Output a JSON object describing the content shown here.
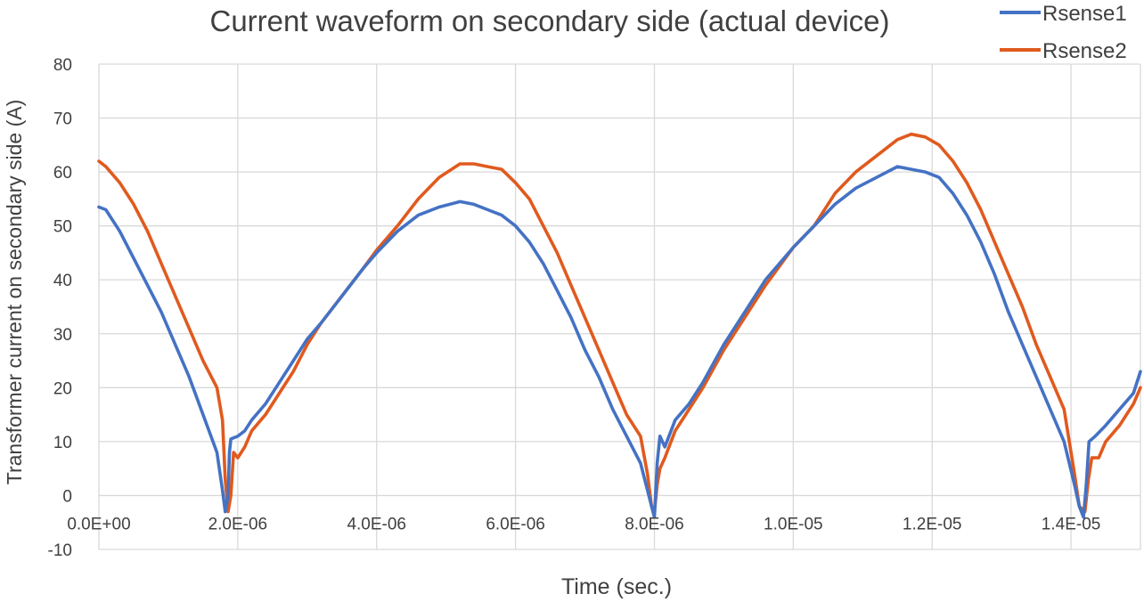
{
  "chart_data": {
    "type": "line",
    "title": "Current waveform on secondary side (actual device)",
    "xlabel": "Time (sec.)",
    "ylabel": "Transformer current on secondary side (A)",
    "xlim": [
      0,
      1.5e-05
    ],
    "ylim": [
      -10,
      80
    ],
    "x_ticks": [
      0,
      2e-06,
      4e-06,
      6e-06,
      8e-06,
      1e-05,
      1.2e-05,
      1.4e-05
    ],
    "x_tick_labels": [
      "0.0E+00",
      "2.0E-06",
      "4.0E-06",
      "6.0E-06",
      "8.0E-06",
      "1.0E-05",
      "1.2E-05",
      "1.4E-05"
    ],
    "y_ticks": [
      -10,
      0,
      10,
      20,
      30,
      40,
      50,
      60,
      70,
      80
    ],
    "y_tick_labels": [
      "-10",
      "0",
      "10",
      "20",
      "30",
      "40",
      "50",
      "60",
      "70",
      "80"
    ],
    "grid": true,
    "legend_position": "top-right",
    "series": [
      {
        "name": "Rsense1",
        "color": "#4472C4",
        "x": [
          0,
          1e-07,
          3e-07,
          5e-07,
          7e-07,
          9e-07,
          1.1e-06,
          1.3e-06,
          1.5e-06,
          1.7e-06,
          1.78e-06,
          1.82e-06,
          1.86e-06,
          1.88e-06,
          1.9e-06,
          2e-06,
          2.1e-06,
          2.2e-06,
          2.4e-06,
          2.6e-06,
          2.8e-06,
          3e-06,
          3.2e-06,
          3.5e-06,
          3.8e-06,
          4e-06,
          4.3e-06,
          4.6e-06,
          4.9e-06,
          5.2e-06,
          5.4e-06,
          5.6e-06,
          5.8e-06,
          6e-06,
          6.2e-06,
          6.4e-06,
          6.6e-06,
          6.8e-06,
          7e-06,
          7.2e-06,
          7.4e-06,
          7.6e-06,
          7.8e-06,
          7.9e-06,
          7.96e-06,
          8e-06,
          8.04e-06,
          8.08e-06,
          8.15e-06,
          8.3e-06,
          8.5e-06,
          8.7e-06,
          9e-06,
          9.3e-06,
          9.6e-06,
          1e-05,
          1.03e-05,
          1.06e-05,
          1.09e-05,
          1.12e-05,
          1.15e-05,
          1.17e-05,
          1.19e-05,
          1.21e-05,
          1.23e-05,
          1.25e-05,
          1.27e-05,
          1.29e-05,
          1.31e-05,
          1.33e-05,
          1.35e-05,
          1.37e-05,
          1.39e-05,
          1.405e-05,
          1.412e-05,
          1.418e-05,
          1.422e-05,
          1.426e-05,
          1.435e-05,
          1.45e-05,
          1.47e-05,
          1.49e-05,
          1.5e-05
        ],
        "y": [
          53.5,
          53,
          49,
          44,
          39,
          34,
          28,
          22,
          15,
          8,
          1,
          -3,
          0,
          8,
          10.5,
          11,
          12,
          14,
          17,
          21,
          25,
          29,
          32,
          37,
          42,
          45,
          49,
          52,
          53.5,
          54.5,
          54,
          53,
          52,
          50,
          47,
          43,
          38,
          33,
          27,
          22,
          16,
          11,
          6,
          1,
          -2,
          -4,
          6,
          11,
          9,
          14,
          17,
          21,
          28,
          34,
          40,
          46,
          50,
          54,
          57,
          59,
          61,
          60.5,
          60,
          59,
          56,
          52,
          47,
          41,
          34,
          28,
          22,
          16,
          10,
          2,
          -2,
          -4,
          2,
          10,
          11,
          13,
          16,
          19,
          23
        ]
      },
      {
        "name": "Rsense2",
        "color": "#E05A1E",
        "x": [
          0,
          1e-07,
          3e-07,
          5e-07,
          7e-07,
          9e-07,
          1.1e-06,
          1.3e-06,
          1.5e-06,
          1.7e-06,
          1.78e-06,
          1.82e-06,
          1.86e-06,
          1.9e-06,
          1.94e-06,
          2e-06,
          2.1e-06,
          2.2e-06,
          2.4e-06,
          2.6e-06,
          2.8e-06,
          3e-06,
          3.2e-06,
          3.5e-06,
          3.8e-06,
          4e-06,
          4.3e-06,
          4.6e-06,
          4.9e-06,
          5.2e-06,
          5.4e-06,
          5.6e-06,
          5.8e-06,
          6e-06,
          6.2e-06,
          6.4e-06,
          6.6e-06,
          6.8e-06,
          7e-06,
          7.2e-06,
          7.4e-06,
          7.6e-06,
          7.8e-06,
          7.9e-06,
          7.96e-06,
          8e-06,
          8.04e-06,
          8.08e-06,
          8.15e-06,
          8.3e-06,
          8.5e-06,
          8.7e-06,
          9e-06,
          9.3e-06,
          9.6e-06,
          1e-05,
          1.03e-05,
          1.06e-05,
          1.09e-05,
          1.12e-05,
          1.15e-05,
          1.17e-05,
          1.19e-05,
          1.21e-05,
          1.23e-05,
          1.25e-05,
          1.27e-05,
          1.29e-05,
          1.31e-05,
          1.33e-05,
          1.35e-05,
          1.37e-05,
          1.39e-05,
          1.405e-05,
          1.412e-05,
          1.42e-05,
          1.425e-05,
          1.43e-05,
          1.44e-05,
          1.45e-05,
          1.47e-05,
          1.49e-05,
          1.5e-05
        ],
        "y": [
          62,
          61,
          58,
          54,
          49,
          43,
          37,
          31,
          25,
          20,
          14,
          3,
          -3,
          0,
          8,
          7,
          9,
          12,
          15,
          19,
          23,
          28,
          32,
          37,
          42,
          45.5,
          50,
          55,
          59,
          61.5,
          61.5,
          61,
          60.5,
          58,
          55,
          50,
          45,
          39,
          33,
          27,
          21,
          15,
          11,
          4,
          -2,
          -3,
          2,
          5,
          7,
          12,
          16,
          20,
          27,
          33,
          39,
          46,
          50,
          56,
          60,
          63,
          66,
          67,
          66.5,
          65,
          62,
          58,
          53,
          47,
          41,
          35,
          28,
          22,
          16,
          4,
          -2,
          -3,
          3,
          7,
          7,
          10,
          13,
          17,
          20
        ]
      }
    ]
  }
}
